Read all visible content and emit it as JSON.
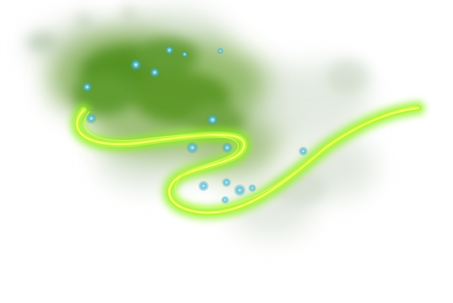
{
  "scene": {
    "subject": "green-smoke-swirl-effect",
    "background_color": "#ffffff",
    "colors": {
      "smoke_dark": "#4f8f1e",
      "smoke_mid": "#7fb23a",
      "smoke_light": "#c9d9b8",
      "ribbon_core": "#e8ff3a",
      "ribbon_glow": "#8ef21c",
      "sparkle": "#3fa7c9",
      "sparkle_core": "#d8f6ff"
    },
    "elements": [
      "smoke-cloud",
      "glowing-ribbon",
      "sparkles"
    ]
  }
}
